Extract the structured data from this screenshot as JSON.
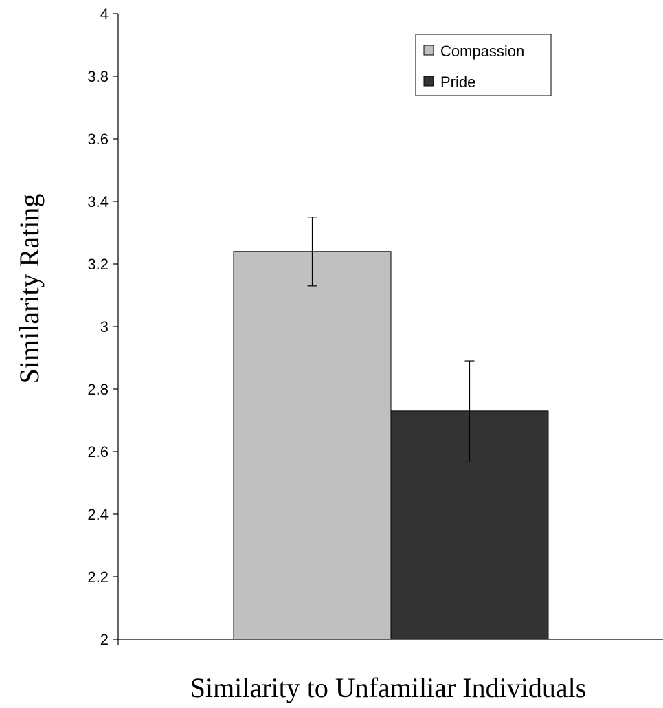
{
  "chart_data": {
    "type": "bar",
    "title": "",
    "xlabel": "Similarity to Unfamiliar Individuals",
    "ylabel": "Similarity Rating",
    "ylim": [
      2,
      4
    ],
    "yticks": [
      "2",
      "2.2",
      "2.4",
      "2.6",
      "2.8",
      "3",
      "3.2",
      "3.4",
      "3.6",
      "3.8",
      "4"
    ],
    "categories": [
      ""
    ],
    "grid": false,
    "legend_position": "top-right",
    "series": [
      {
        "name": "Compassion",
        "values": [
          3.24
        ],
        "error_low": [
          3.13
        ],
        "error_high": [
          3.35
        ],
        "color": "#c0c0c0"
      },
      {
        "name": "Pride",
        "values": [
          2.73
        ],
        "error_low": [
          2.57
        ],
        "error_high": [
          2.89
        ],
        "color": "#333333"
      }
    ]
  }
}
